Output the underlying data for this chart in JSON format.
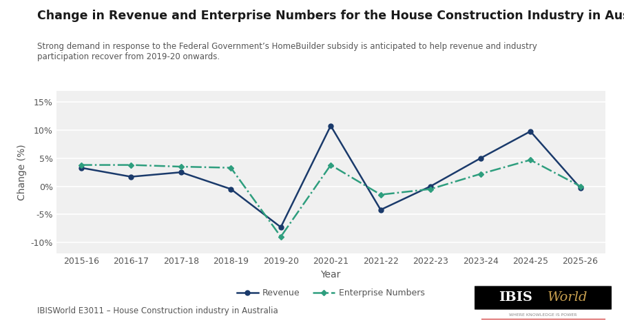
{
  "title": "Change in Revenue and Enterprise Numbers for the House Construction Industry in Australia",
  "subtitle": "Strong demand in response to the Federal Government’s HomeBuilder subsidy is anticipated to help revenue and industry\nparticipation recover from 2019-20 onwards.",
  "xlabel": "Year",
  "ylabel": "Change (%)",
  "years": [
    "2015-16",
    "2016-17",
    "2017-18",
    "2018-19",
    "2019-20",
    "2020-21",
    "2021-22",
    "2022-23",
    "2023-24",
    "2024-25",
    "2025-26"
  ],
  "revenue": [
    3.3,
    1.7,
    2.5,
    -0.5,
    -7.3,
    10.8,
    -4.2,
    0.0,
    5.0,
    9.8,
    -0.3
  ],
  "enterprise": [
    3.8,
    3.8,
    3.5,
    3.3,
    -9.0,
    3.8,
    -1.5,
    -0.5,
    2.2,
    4.7,
    0.0
  ],
  "revenue_color": "#1a3a6b",
  "enterprise_color": "#2e9e7e",
  "ylim": [
    -12,
    17
  ],
  "yticks": [
    -10,
    -5,
    0,
    5,
    10,
    15
  ],
  "background_color": "#ffffff",
  "plot_bg_color": "#f0f0f0",
  "grid_color": "#ffffff",
  "footer_text": "IBISWorld E3011 – House Construction industry in Australia",
  "legend_revenue": "Revenue",
  "legend_enterprise": "Enterprise Numbers"
}
